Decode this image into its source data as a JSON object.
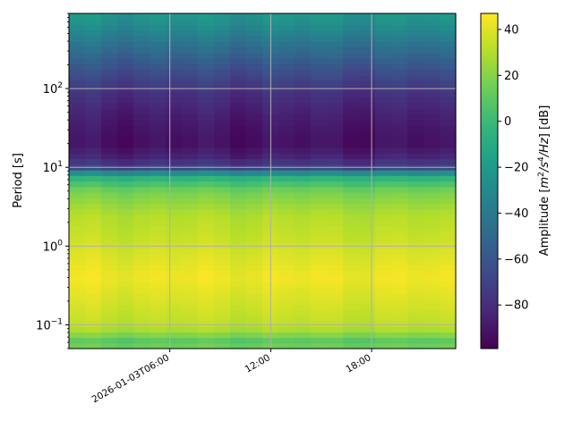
{
  "chart_data": {
    "type": "heatmap",
    "ylabel": "Period [s]",
    "y_scale": "log",
    "ylim": [
      0.05,
      900
    ],
    "y_ticks": [
      {
        "value": 0.1,
        "label_base": "10",
        "label_exp": "−1"
      },
      {
        "value": 1,
        "label_base": "10",
        "label_exp": "0"
      },
      {
        "value": 10,
        "label_base": "10",
        "label_exp": "1"
      },
      {
        "value": 100,
        "label_base": "10",
        "label_exp": "2"
      }
    ],
    "x_ticks": [
      {
        "value": "2026-01-03T06:00",
        "label": "2026-01-03T06:00"
      },
      {
        "value": "2026-01-03T12:00",
        "label": "12:00"
      },
      {
        "value": "2026-01-03T18:00",
        "label": "18:00"
      }
    ],
    "xlim": [
      "2026-01-03T00:00",
      "2026-01-03T23:00"
    ],
    "grid": true,
    "colorbar": {
      "label_prefix": "Amplitude [",
      "label_math_base": "m",
      "label_math_exp": "2",
      "label_math_mid": "/s",
      "label_math_exp2": "4",
      "label_math_end": "/Hz",
      "label_suffix": "] [dB]",
      "range": [
        -99,
        47
      ],
      "ticks": [
        {
          "value": 40,
          "label": "40"
        },
        {
          "value": 20,
          "label": "20"
        },
        {
          "value": 0,
          "label": "0"
        },
        {
          "value": -20,
          "label": "−20"
        },
        {
          "value": -40,
          "label": "−40"
        },
        {
          "value": -60,
          "label": "−60"
        },
        {
          "value": -80,
          "label": "−80"
        }
      ],
      "colormap": "viridis"
    },
    "time_bins": 24,
    "amplitude_profile": [
      {
        "period": 0.05,
        "db": 18
      },
      {
        "period": 0.06,
        "db": 8
      },
      {
        "period": 0.07,
        "db": 12
      },
      {
        "period": 0.08,
        "db": 26
      },
      {
        "period": 0.1,
        "db": 32
      },
      {
        "period": 0.15,
        "db": 36
      },
      {
        "period": 0.25,
        "db": 40
      },
      {
        "period": 0.4,
        "db": 44
      },
      {
        "period": 0.7,
        "db": 40
      },
      {
        "period": 1.2,
        "db": 35
      },
      {
        "period": 2.5,
        "db": 30
      },
      {
        "period": 5,
        "db": 16
      },
      {
        "period": 8,
        "db": -10
      },
      {
        "period": 10,
        "db": -70
      },
      {
        "period": 14,
        "db": -85
      },
      {
        "period": 20,
        "db": -93
      },
      {
        "period": 30,
        "db": -91
      },
      {
        "period": 50,
        "db": -86
      },
      {
        "period": 80,
        "db": -80
      },
      {
        "period": 120,
        "db": -72
      },
      {
        "period": 200,
        "db": -60
      },
      {
        "period": 350,
        "db": -45
      },
      {
        "period": 600,
        "db": -30
      },
      {
        "period": 900,
        "db": -22
      }
    ]
  }
}
